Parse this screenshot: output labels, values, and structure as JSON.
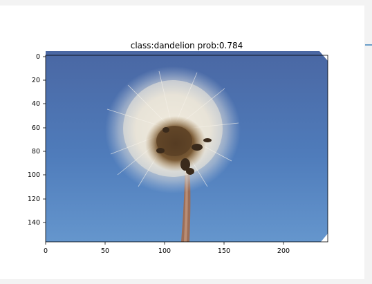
{
  "figure": {
    "title": "class:dandelion  prob:0.784",
    "x_ticks": [
      "0",
      "50",
      "100",
      "150",
      "200"
    ],
    "y_ticks": [
      "0",
      "20",
      "40",
      "60",
      "80",
      "100",
      "120",
      "140"
    ],
    "image_description_icon": "dandelion-seedhead-photo"
  },
  "colors": {
    "panel_background": "#ffffff",
    "page_background": "#f3f3f3",
    "accent": "#6a9fc9",
    "sky_top": "#4a6aa6",
    "sky_bottom": "#5f8fc8"
  }
}
